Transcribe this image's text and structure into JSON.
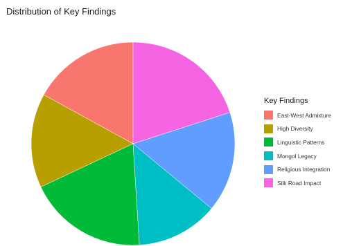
{
  "chart_data": {
    "type": "pie",
    "title": "Distribution of Key Findings",
    "legend_title": "Key Findings",
    "legend_position": "right",
    "categories": [
      "East-West Admixture",
      "High Diversity",
      "Linguistic Patterns",
      "Mongol Legacy",
      "Religious Integration",
      "Silk Road Impact"
    ],
    "values": [
      17,
      15,
      19,
      13,
      16,
      20
    ],
    "colors": [
      "#F8766D",
      "#B79F00",
      "#00BA38",
      "#00BFC4",
      "#619CFF",
      "#F564E3"
    ],
    "start": "12 o'clock",
    "direction": "counter-clockwise"
  }
}
